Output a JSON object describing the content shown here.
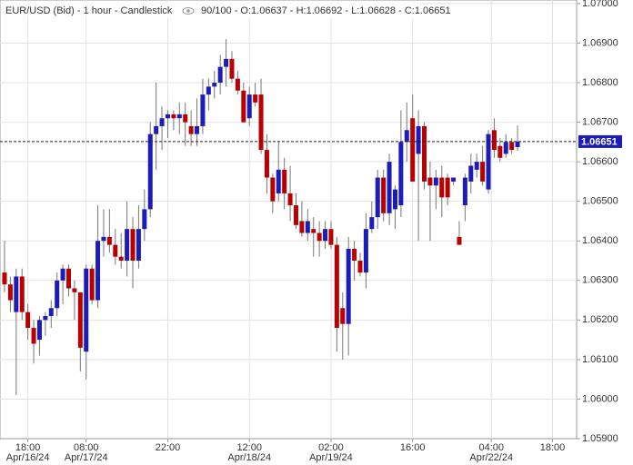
{
  "chart_data": {
    "type": "candlestick",
    "title": "EUR/USD (Bid) - 1 hour - Candlestick",
    "info": "90/100 - O:1.06637 - H:1.06692 - L:1.06628 - C:1.06651",
    "up_color": "#1c1cb8",
    "down_color": "#b80000",
    "grid": true,
    "last_price": 1.06651,
    "xlim": [
      -0.78,
      98.13
    ],
    "xticks": [
      {
        "value": 4,
        "label": "18:00"
      },
      {
        "value": 14,
        "label": "08:00"
      },
      {
        "value": 28,
        "label": "22:00"
      },
      {
        "value": 42,
        "label": "12:00"
      },
      {
        "value": 56,
        "label": "02:00"
      },
      {
        "value": 70,
        "label": "16:00"
      },
      {
        "value": 83.5,
        "label": "04:00"
      },
      {
        "value": 94,
        "label": "18:00"
      }
    ],
    "xtick_dates": [
      "Apr/16/24",
      "Apr/17/24",
      null,
      "Apr/18/24",
      "Apr/19/24",
      null,
      "Apr/22/24",
      null
    ],
    "ylim": [
      1.059,
      1.07009
    ],
    "yticks": [
      {
        "value": 1.07,
        "label": "1.07000"
      },
      {
        "value": 1.069,
        "label": "1.06900"
      },
      {
        "value": 1.068,
        "label": "1.06800"
      },
      {
        "value": 1.067,
        "label": "1.06700"
      },
      {
        "value": 1.066,
        "label": "1.06600"
      },
      {
        "value": 1.065,
        "label": "1.06500"
      },
      {
        "value": 1.064,
        "label": "1.06400"
      },
      {
        "value": 1.063,
        "label": "1.06300"
      },
      {
        "value": 1.062,
        "label": "1.06200"
      },
      {
        "value": 1.061,
        "label": "1.06100"
      },
      {
        "value": 1.06,
        "label": "1.06000"
      },
      {
        "value": 1.059,
        "label": "1.05900"
      }
    ],
    "series": [
      {
        "open": [
          1.0632,
          1.0629,
          1.0622,
          1.0631,
          1.0622,
          1.0618,
          1.0615,
          1.062,
          1.0621,
          1.0623,
          1.063,
          1.0633,
          1.0628,
          1.0627,
          1.0612,
          1.0633,
          1.0625,
          1.064,
          1.0641,
          1.0639,
          1.0636,
          1.0635,
          1.0643,
          1.0635,
          1.0643,
          1.0648,
          1.0667,
          1.0669,
          1.0671,
          1.0672,
          1.0671,
          1.0672,
          1.0669,
          1.0667,
          1.0669,
          1.0677,
          1.0679,
          1.068,
          1.0684,
          1.0686,
          1.0681,
          1.0678,
          1.0671,
          1.0677,
          1.0677,
          1.0663,
          1.0656,
          1.0652,
          1.0658,
          1.0652,
          1.0649,
          1.0645,
          1.0642,
          1.0643,
          1.0642,
          1.064,
          1.0643,
          1.0639,
          1.0623,
          1.0619,
          1.0638,
          1.0635,
          1.0632,
          1.0643,
          1.0646,
          1.0656,
          1.0647,
          1.0648,
          1.0649,
          1.0665,
          1.0671,
          1.0662,
          1.0669,
          1.0656,
          1.0654,
          1.0656,
          1.0656,
          1.0655,
          1.0641,
          1.0649,
          1.0655,
          1.0658,
          1.066,
          1.0653,
          1.0668,
          1.0664,
          1.0662,
          1.0665,
          1.06637
        ],
        "high": [
          1.064,
          1.0631,
          1.0633,
          1.0633,
          1.0624,
          1.062,
          1.0621,
          1.0622,
          1.0625,
          1.0632,
          1.0634,
          1.0634,
          1.063,
          1.0627,
          1.0634,
          1.0634,
          1.0649,
          1.0648,
          1.0648,
          1.0643,
          1.0642,
          1.065,
          1.0646,
          1.0649,
          1.0653,
          1.067,
          1.068,
          1.0674,
          1.0673,
          1.0673,
          1.0675,
          1.0675,
          1.0673,
          1.0676,
          1.0681,
          1.0681,
          1.0683,
          1.0687,
          1.0691,
          1.0688,
          1.0683,
          1.068,
          1.0679,
          1.068,
          1.0681,
          1.0667,
          1.0657,
          1.0665,
          1.0661,
          1.0659,
          1.0652,
          1.065,
          1.0648,
          1.0646,
          1.0645,
          1.0645,
          1.0645,
          1.0641,
          1.0627,
          1.0641,
          1.064,
          1.0637,
          1.0647,
          1.065,
          1.0658,
          1.0658,
          1.0662,
          1.0654,
          1.0673,
          1.0675,
          1.0677,
          1.0673,
          1.067,
          1.066,
          1.0658,
          1.0659,
          1.0657,
          1.0656,
          1.0645,
          1.0657,
          1.0662,
          1.0662,
          1.0664,
          1.0668,
          1.0671,
          1.0666,
          1.0667,
          1.0666,
          1.06692
        ],
        "low": [
          1.0627,
          1.0622,
          1.0601,
          1.062,
          1.0615,
          1.0609,
          1.0611,
          1.0616,
          1.0618,
          1.0621,
          1.0624,
          1.0626,
          1.062,
          1.0607,
          1.0605,
          1.0624,
          1.0623,
          1.0636,
          1.0637,
          1.0634,
          1.0633,
          1.0631,
          1.0628,
          1.0633,
          1.064,
          1.0646,
          1.0658,
          1.0663,
          1.0666,
          1.0668,
          1.0667,
          1.0664,
          1.0664,
          1.0664,
          1.0667,
          1.0673,
          1.0676,
          1.0677,
          1.0679,
          1.068,
          1.0677,
          1.067,
          1.0669,
          1.0674,
          1.0662,
          1.0652,
          1.0647,
          1.065,
          1.0648,
          1.0645,
          1.0643,
          1.0641,
          1.064,
          1.0636,
          1.0636,
          1.0638,
          1.0638,
          1.0612,
          1.061,
          1.0611,
          1.063,
          1.0631,
          1.0628,
          1.0642,
          1.0643,
          1.0645,
          1.0644,
          1.0643,
          1.0646,
          1.066,
          1.0655,
          1.064,
          1.0653,
          1.064,
          1.0648,
          1.0646,
          1.0649,
          1.0654,
          1.0639,
          1.0645,
          1.0652,
          1.0656,
          1.0654,
          1.0652,
          1.0661,
          1.066,
          1.0661,
          1.0662,
          1.06628
        ],
        "close": [
          1.0629,
          1.0625,
          1.0631,
          1.0622,
          1.0618,
          1.0614,
          1.062,
          1.0621,
          1.0623,
          1.063,
          1.0633,
          1.0628,
          1.0627,
          1.0613,
          1.0633,
          1.0625,
          1.064,
          1.0641,
          1.0639,
          1.0636,
          1.0635,
          1.0643,
          1.0635,
          1.0643,
          1.0648,
          1.0667,
          1.0669,
          1.0671,
          1.0672,
          1.0671,
          1.0672,
          1.067,
          1.0667,
          1.0669,
          1.0677,
          1.0679,
          1.068,
          1.0684,
          1.0686,
          1.0681,
          1.0678,
          1.067,
          1.0677,
          1.0675,
          1.0663,
          1.0656,
          1.065,
          1.0658,
          1.0652,
          1.0649,
          1.0644,
          1.0642,
          1.0645,
          1.0642,
          1.064,
          1.0643,
          1.0639,
          1.0618,
          1.0619,
          1.0638,
          1.0635,
          1.0632,
          1.0643,
          1.0646,
          1.0656,
          1.0647,
          1.066,
          1.0653,
          1.0665,
          1.0668,
          1.0655,
          1.0669,
          1.0655,
          1.0654,
          1.0656,
          1.0651,
          1.0651,
          1.0656,
          1.0639,
          1.0656,
          1.0659,
          1.066,
          1.0655,
          1.0667,
          1.0663,
          1.0661,
          1.0665,
          1.0663,
          1.06651
        ]
      }
    ]
  }
}
